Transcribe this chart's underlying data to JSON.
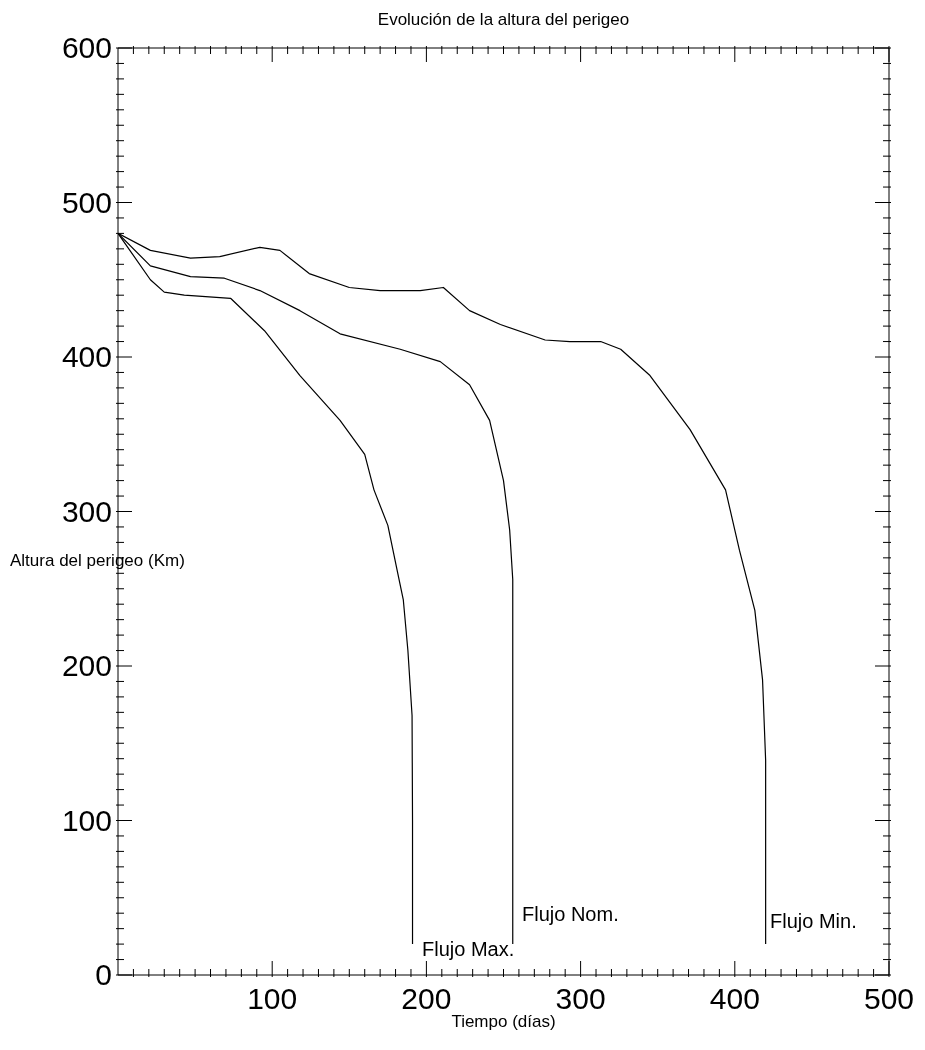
{
  "chart_data": {
    "type": "line",
    "title": "Evolución de la altura del perigeo",
    "xlabel": "Tiempo (días)",
    "ylabel": "Altura del perigeo (Km)",
    "xlim": [
      0,
      500
    ],
    "ylim": [
      0,
      600
    ],
    "xticks": [
      {
        "value": 10,
        "label": null
      },
      {
        "value": 20,
        "label": null
      },
      {
        "value": 30,
        "label": null
      },
      {
        "value": 40,
        "label": null
      },
      {
        "value": 50,
        "label": null
      },
      {
        "value": 60,
        "label": null
      },
      {
        "value": 70,
        "label": null
      },
      {
        "value": 80,
        "label": null
      },
      {
        "value": 90,
        "label": null
      },
      100,
      {
        "value": 110,
        "label": null
      },
      {
        "value": 120,
        "label": null
      },
      {
        "value": 130,
        "label": null
      },
      {
        "value": 140,
        "label": null
      },
      {
        "value": 150,
        "label": null
      },
      {
        "value": 160,
        "label": null
      },
      {
        "value": 170,
        "label": null
      },
      {
        "value": 180,
        "label": null
      },
      {
        "value": 190,
        "label": null
      },
      200,
      {
        "value": 210,
        "label": null
      },
      {
        "value": 220,
        "label": null
      },
      {
        "value": 230,
        "label": null
      },
      {
        "value": 240,
        "label": null
      },
      {
        "value": 250,
        "label": null
      },
      {
        "value": 260,
        "label": null
      },
      {
        "value": 270,
        "label": null
      },
      {
        "value": 280,
        "label": null
      },
      {
        "value": 290,
        "label": null
      },
      300,
      {
        "value": 310,
        "label": null
      },
      {
        "value": 320,
        "label": null
      },
      {
        "value": 330,
        "label": null
      },
      {
        "value": 340,
        "label": null
      },
      {
        "value": 350,
        "label": null
      },
      {
        "value": 360,
        "label": null
      },
      {
        "value": 370,
        "label": null
      },
      {
        "value": 380,
        "label": null
      },
      {
        "value": 390,
        "label": null
      },
      400,
      {
        "value": 410,
        "label": null
      },
      {
        "value": 420,
        "label": null
      },
      {
        "value": 430,
        "label": null
      },
      {
        "value": 440,
        "label": null
      },
      {
        "value": 450,
        "label": null
      },
      {
        "value": 460,
        "label": null
      },
      {
        "value": 470,
        "label": null
      },
      {
        "value": 480,
        "label": null
      },
      {
        "value": 490,
        "label": null
      },
      500
    ],
    "yticks": [
      0,
      {
        "value": 10,
        "label": null
      },
      {
        "value": 20,
        "label": null
      },
      {
        "value": 30,
        "label": null
      },
      {
        "value": 40,
        "label": null
      },
      {
        "value": 50,
        "label": null
      },
      {
        "value": 60,
        "label": null
      },
      {
        "value": 70,
        "label": null
      },
      {
        "value": 80,
        "label": null
      },
      {
        "value": 90,
        "label": null
      },
      100,
      {
        "value": 110,
        "label": null
      },
      {
        "value": 120,
        "label": null
      },
      {
        "value": 130,
        "label": null
      },
      {
        "value": 140,
        "label": null
      },
      {
        "value": 150,
        "label": null
      },
      {
        "value": 160,
        "label": null
      },
      {
        "value": 170,
        "label": null
      },
      {
        "value": 180,
        "label": null
      },
      {
        "value": 190,
        "label": null
      },
      200,
      {
        "value": 210,
        "label": null
      },
      {
        "value": 220,
        "label": null
      },
      {
        "value": 230,
        "label": null
      },
      {
        "value": 240,
        "label": null
      },
      {
        "value": 250,
        "label": null
      },
      {
        "value": 260,
        "label": null
      },
      {
        "value": 270,
        "label": null
      },
      {
        "value": 280,
        "label": null
      },
      {
        "value": 290,
        "label": null
      },
      300,
      {
        "value": 310,
        "label": null
      },
      {
        "value": 320,
        "label": null
      },
      {
        "value": 330,
        "label": null
      },
      {
        "value": 340,
        "label": null
      },
      {
        "value": 350,
        "label": null
      },
      {
        "value": 360,
        "label": null
      },
      {
        "value": 370,
        "label": null
      },
      {
        "value": 380,
        "label": null
      },
      {
        "value": 390,
        "label": null
      },
      400,
      {
        "value": 410,
        "label": null
      },
      {
        "value": 420,
        "label": null
      },
      {
        "value": 430,
        "label": null
      },
      {
        "value": 440,
        "label": null
      },
      {
        "value": 450,
        "label": null
      },
      {
        "value": 460,
        "label": null
      },
      {
        "value": 470,
        "label": null
      },
      {
        "value": 480,
        "label": null
      },
      {
        "value": 490,
        "label": null
      },
      500,
      {
        "value": 510,
        "label": null
      },
      {
        "value": 520,
        "label": null
      },
      {
        "value": 530,
        "label": null
      },
      {
        "value": 540,
        "label": null
      },
      {
        "value": 550,
        "label": null
      },
      {
        "value": 560,
        "label": null
      },
      {
        "value": 570,
        "label": null
      },
      {
        "value": 580,
        "label": null
      },
      {
        "value": 590,
        "label": null
      },
      600
    ],
    "series": [
      {
        "color": "#000000",
        "x": [
          0,
          21,
          30,
          43,
          73,
          95,
          118,
          144,
          160,
          166,
          175,
          181,
          185,
          188,
          190.7,
          191,
          191
        ],
        "values": [
          480,
          450,
          442,
          440,
          438,
          417,
          388,
          359,
          337,
          314,
          291,
          262,
          243,
          210,
          168,
          100,
          20
        ]
      },
      {
        "color": "#000000",
        "x": [
          0,
          21,
          47,
          69,
          92,
          118,
          144,
          183,
          209,
          228,
          241,
          250,
          254,
          256,
          256,
          256
        ],
        "values": [
          480,
          459,
          452,
          451,
          443,
          430,
          415,
          405,
          397,
          382,
          359,
          320,
          288,
          256,
          204,
          20
        ]
      },
      {
        "color": "#000000",
        "x": [
          0,
          21,
          47,
          66,
          92,
          105,
          124,
          150,
          170,
          196,
          211,
          228,
          248,
          277,
          293,
          313,
          326,
          345,
          371,
          394,
          403,
          413,
          418,
          420,
          420
        ],
        "values": [
          480,
          469,
          464,
          465,
          471,
          469,
          454,
          445,
          443,
          443,
          445,
          430,
          421,
          411,
          410,
          410,
          405,
          388,
          353,
          314,
          275,
          236,
          191,
          139,
          20
        ]
      }
    ],
    "annotations": [
      "Flujo Max.",
      "Flujo Nom.",
      "Flujo Min."
    ]
  }
}
